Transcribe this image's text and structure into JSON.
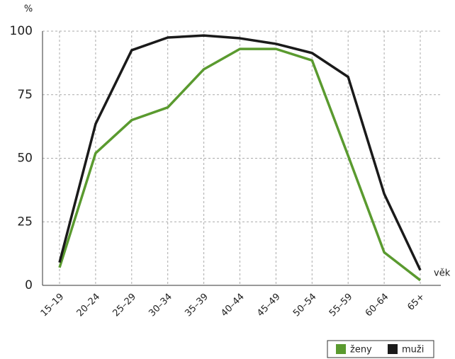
{
  "chart_data": {
    "type": "line",
    "y_label": "%",
    "x_label": "věk",
    "categories": [
      "15–19",
      "20–24",
      "25–29",
      "30–34",
      "35–39",
      "40–44",
      "45–49",
      "50–54",
      "55–59",
      "60–64",
      "65+"
    ],
    "series": [
      {
        "name": "ženy",
        "color": "#5a9a2f",
        "values": [
          7,
          52,
          65,
          70,
          85,
          93,
          93,
          88.5,
          51,
          13,
          2
        ]
      },
      {
        "name": "muži",
        "color": "#1a1a1a",
        "values": [
          9,
          63.5,
          92.5,
          97.5,
          98.3,
          97.2,
          95,
          91.4,
          82,
          36,
          6
        ]
      }
    ],
    "ylim": [
      0,
      100
    ],
    "yticks": [
      0,
      25,
      50,
      75,
      100
    ],
    "grid": true,
    "legend": "bottom-right"
  }
}
